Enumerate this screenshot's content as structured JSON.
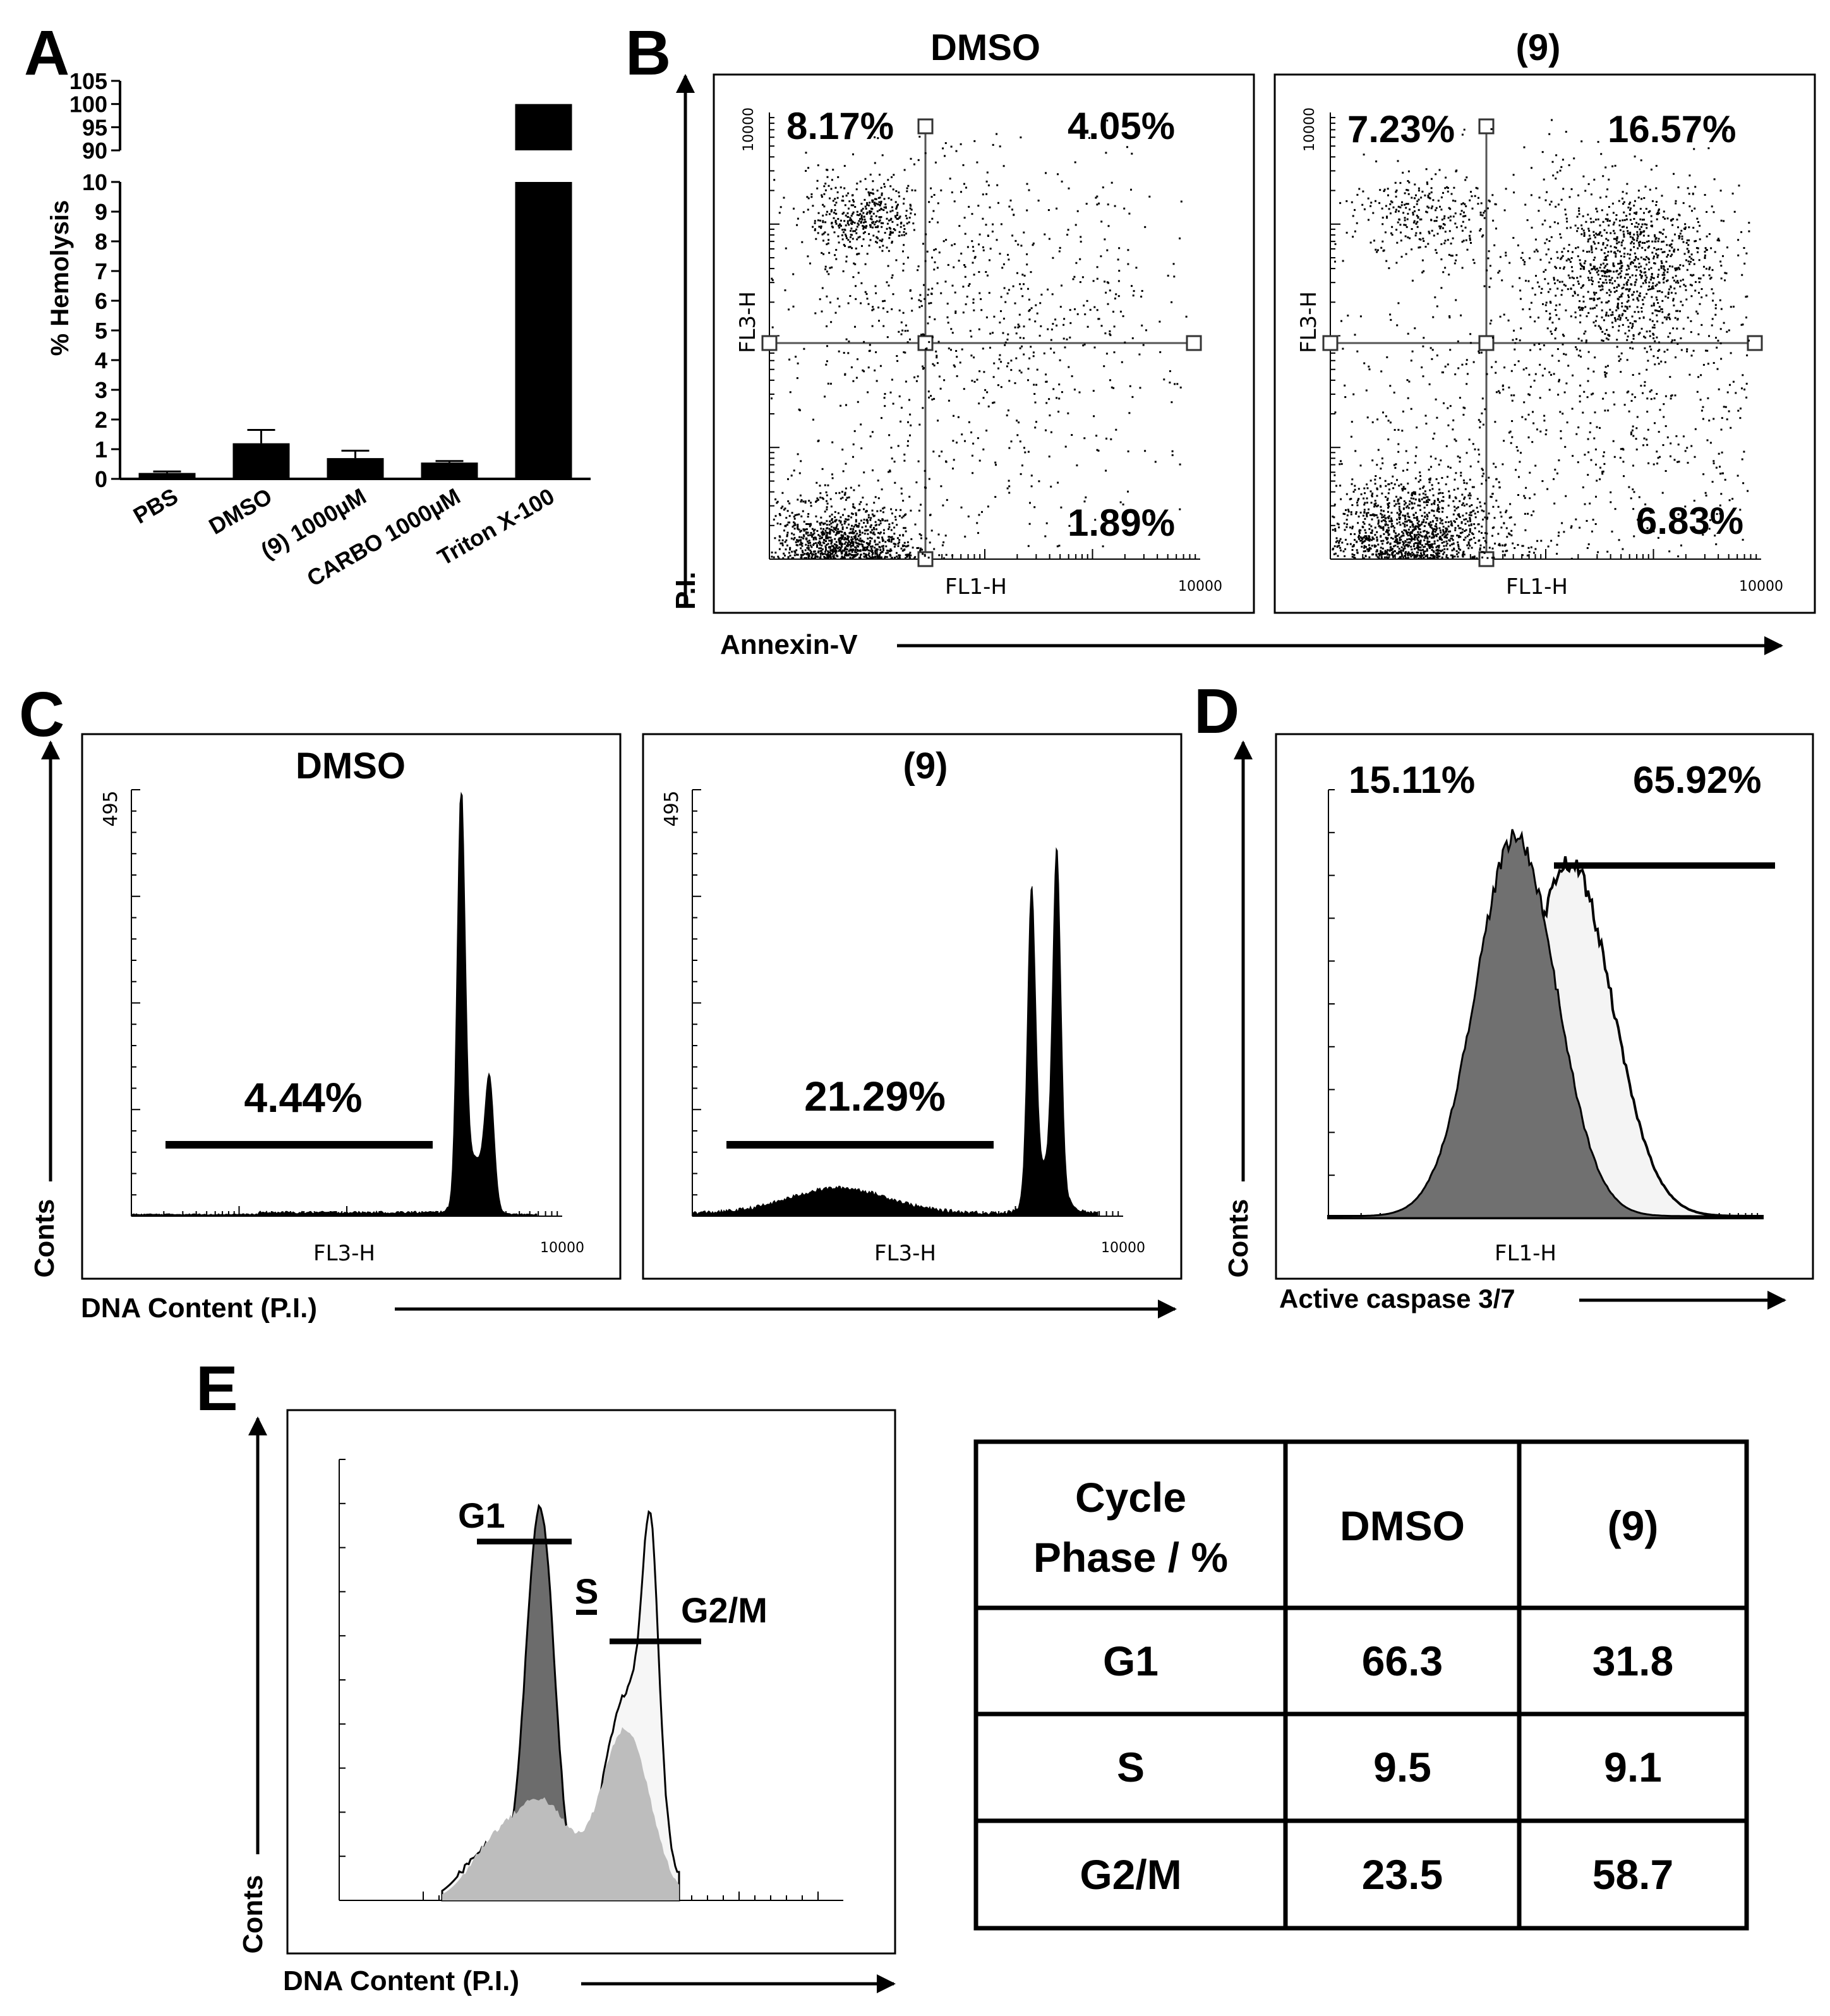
{
  "panels": {
    "A": {
      "letter": "A"
    },
    "B": {
      "letter": "B"
    },
    "C": {
      "letter": "C"
    },
    "D": {
      "letter": "D"
    },
    "E": {
      "letter": "E"
    }
  },
  "chart_data": [
    {
      "panel": "A",
      "type": "bar",
      "ylabel": "% Hemolysis",
      "categories": [
        "PBS",
        "DMSO",
        "(9) 1000µM",
        "CARBO 1000µM",
        "Triton X-100"
      ],
      "values": [
        0.2,
        1.2,
        0.7,
        0.55,
        100
      ],
      "errors": [
        0.05,
        0.45,
        0.25,
        0.05,
        0
      ],
      "y_ticks_lower": [
        "0",
        "1",
        "2",
        "3",
        "4",
        "5",
        "6",
        "7",
        "8",
        "9",
        "10"
      ],
      "y_ticks_upper": [
        "90",
        "95",
        "100",
        "105"
      ],
      "ylim_lower": [
        0,
        10
      ],
      "ylim_upper": [
        90,
        105
      ],
      "broken_axis": true,
      "bar_color": "#000000"
    },
    {
      "panel": "B",
      "type": "scatter",
      "xlabel": "Annexin-V",
      "ylabel": "P.I.",
      "x_axis_name": "FL1-H",
      "y_axis_name": "FL3-H",
      "axis_max_label": "10000",
      "plots": [
        {
          "title": "DMSO",
          "quadrants": {
            "upper_left": "8.17%",
            "upper_right": "4.05%",
            "lower_right": "1.89%"
          }
        },
        {
          "title": "(9)",
          "quadrants": {
            "upper_left": "7.23%",
            "upper_right": "16.57%",
            "lower_right": "6.83%"
          }
        }
      ]
    },
    {
      "panel": "C",
      "type": "area",
      "xlabel": "DNA Content (P.I.)",
      "ylabel": "Conts",
      "x_axis_name": "FL3-H",
      "y_max_label": "495",
      "axis_max_label": "10000",
      "plots": [
        {
          "title": "DMSO",
          "gate_percent": "4.44%"
        },
        {
          "title": "(9)",
          "gate_percent": "21.29%"
        }
      ]
    },
    {
      "panel": "D",
      "type": "area",
      "xlabel": "Active caspase 3/7",
      "ylabel": "Conts",
      "x_axis_name": "FL1-H",
      "left_percent": "15.11%",
      "right_percent": "65.92%"
    },
    {
      "panel": "E",
      "type": "area",
      "xlabel": "DNA Content (P.I.)",
      "ylabel": "Conts",
      "phase_labels": [
        "G1",
        "S",
        "G2/M"
      ]
    },
    {
      "panel": "E-table",
      "type": "table",
      "header": [
        "Cycle\nPhase / %",
        "DMSO",
        "(9)"
      ],
      "header_lines": [
        "Cycle",
        "Phase / %"
      ],
      "rows": [
        [
          "G1",
          "66.3",
          "31.8"
        ],
        [
          "S",
          "9.5",
          "9.1"
        ],
        [
          "G2/M",
          "23.5",
          "58.7"
        ]
      ]
    }
  ]
}
